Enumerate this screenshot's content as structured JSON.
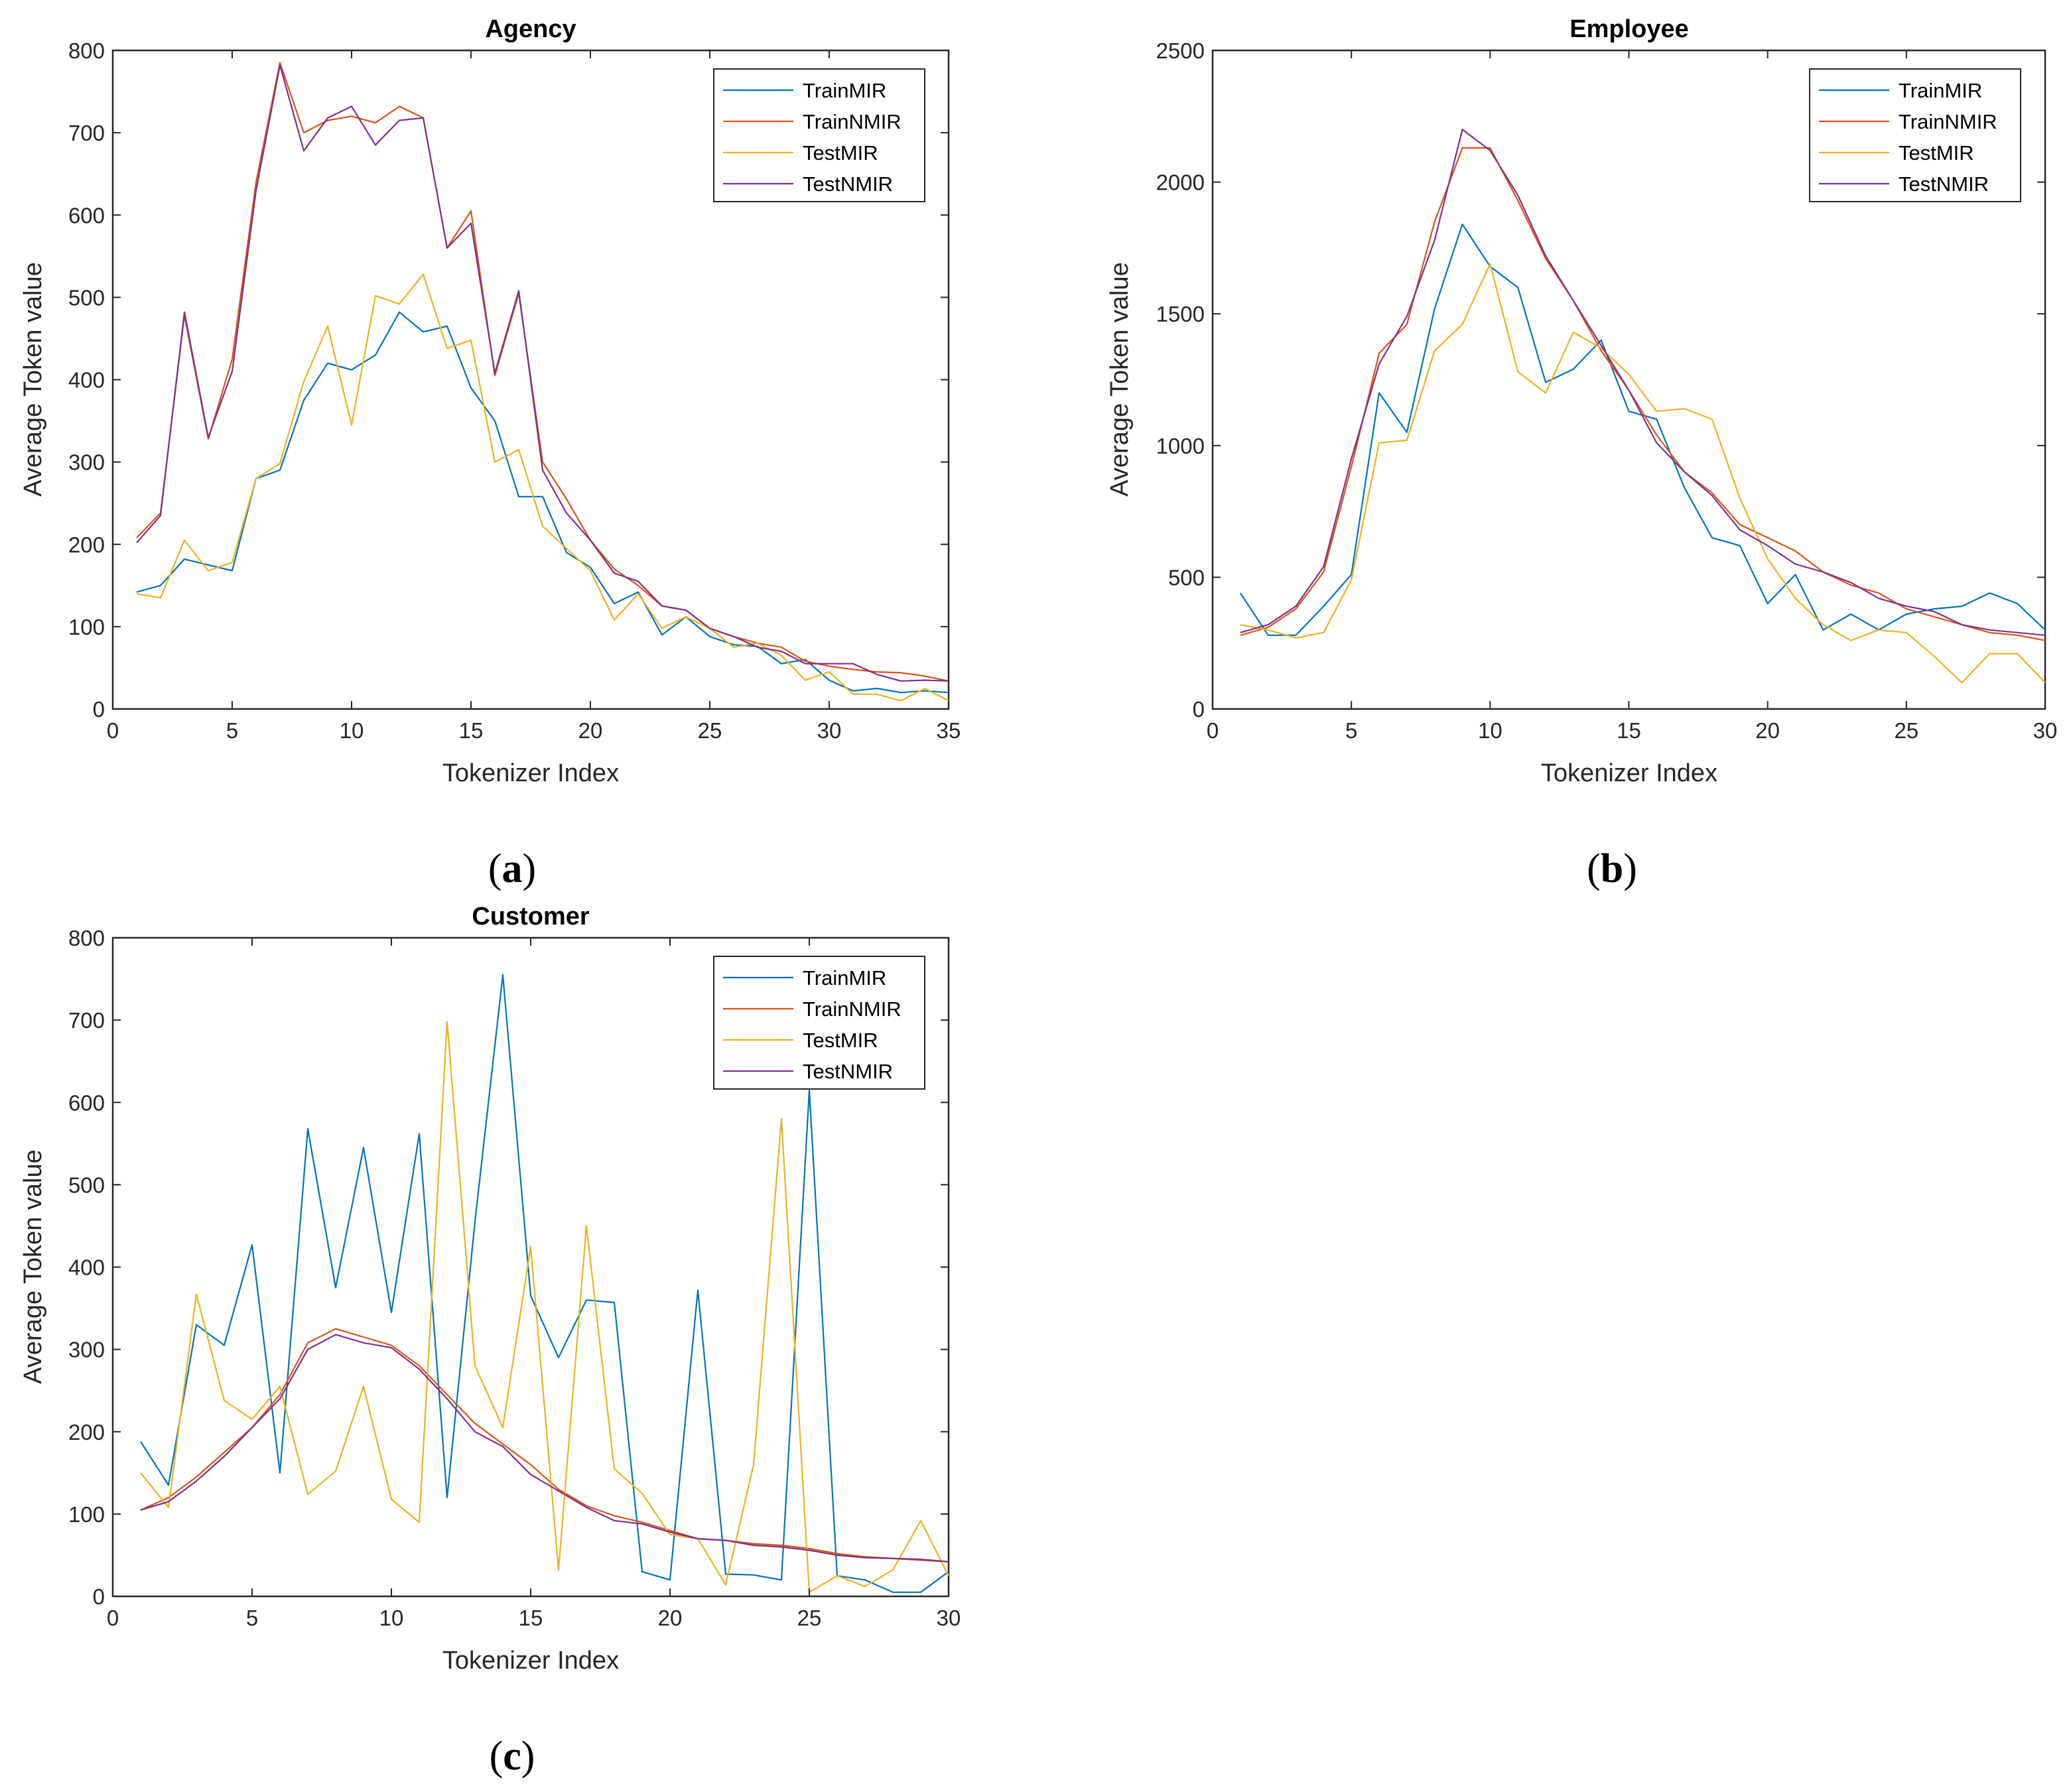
{
  "colors": {
    "TrainMIR": "#0072BD",
    "TrainNMIR": "#D95319",
    "TestMIR": "#EDB120",
    "TestNMIR": "#7E2F8E",
    "axis": "#262626"
  },
  "chart_data": [
    {
      "type": "line",
      "title": "Agency",
      "xlabel": "Tokenizer Index",
      "ylabel": "Average Token value",
      "xlim": [
        0,
        35
      ],
      "ylim": [
        0,
        800
      ],
      "xticks": [
        0,
        5,
        10,
        15,
        20,
        25,
        30,
        35
      ],
      "yticks": [
        0,
        100,
        200,
        300,
        400,
        500,
        600,
        700,
        800
      ],
      "legend": "top-right",
      "caption": {
        "open": "(",
        "letter": "a",
        "close": ")"
      },
      "series": [
        {
          "name": "TrainMIR",
          "values": [
            142,
            150,
            182,
            175,
            168,
            280,
            290,
            375,
            420,
            412,
            430,
            482,
            458,
            465,
            390,
            350,
            258,
            258,
            190,
            172,
            128,
            142,
            90,
            112,
            88,
            78,
            76,
            55,
            60,
            35,
            22,
            25,
            20,
            22,
            20
          ]
        },
        {
          "name": "TrainNMIR",
          "values": [
            208,
            238,
            478,
            328,
            425,
            640,
            785,
            700,
            715,
            720,
            712,
            732,
            718,
            560,
            605,
            405,
            505,
            300,
            255,
            205,
            170,
            150,
            125,
            120,
            98,
            88,
            80,
            75,
            58,
            52,
            48,
            45,
            44,
            40,
            34
          ]
        },
        {
          "name": "TestMIR",
          "values": [
            140,
            135,
            205,
            168,
            178,
            280,
            298,
            398,
            465,
            345,
            502,
            492,
            528,
            438,
            448,
            300,
            315,
            222,
            195,
            168,
            108,
            140,
            98,
            112,
            98,
            75,
            80,
            65,
            35,
            45,
            18,
            18,
            10,
            25,
            10
          ]
        },
        {
          "name": "TestNMIR",
          "values": [
            202,
            235,
            482,
            330,
            410,
            630,
            782,
            678,
            718,
            732,
            685,
            715,
            718,
            560,
            590,
            408,
            508,
            290,
            238,
            205,
            165,
            155,
            125,
            120,
            98,
            88,
            75,
            70,
            55,
            55,
            55,
            42,
            34,
            35,
            34
          ]
        }
      ]
    },
    {
      "type": "line",
      "title": "Employee",
      "xlabel": "Tokenizer Index",
      "ylabel": "Average Token value",
      "xlim": [
        0,
        30
      ],
      "ylim": [
        0,
        2500
      ],
      "xticks": [
        0,
        5,
        10,
        15,
        20,
        25,
        30
      ],
      "yticks": [
        0,
        500,
        1000,
        1500,
        2000,
        2500
      ],
      "legend": "top-right",
      "caption": {
        "open": "(",
        "letter": "b",
        "close": ")"
      },
      "series": [
        {
          "name": "TrainMIR",
          "values": [
            440,
            280,
            280,
            390,
            510,
            1200,
            1050,
            1520,
            1840,
            1680,
            1600,
            1240,
            1290,
            1400,
            1130,
            1100,
            840,
            650,
            620,
            400,
            510,
            300,
            360,
            300,
            360,
            380,
            390,
            440,
            400,
            300
          ]
        },
        {
          "name": "TrainNMIR",
          "values": [
            280,
            310,
            380,
            520,
            920,
            1350,
            1460,
            1850,
            2130,
            2130,
            1930,
            1710,
            1550,
            1360,
            1210,
            1040,
            900,
            820,
            700,
            650,
            600,
            520,
            470,
            440,
            380,
            350,
            320,
            290,
            280,
            260
          ]
        },
        {
          "name": "TestMIR",
          "values": [
            320,
            300,
            270,
            290,
            490,
            1010,
            1020,
            1360,
            1460,
            1690,
            1280,
            1200,
            1430,
            1370,
            1270,
            1130,
            1140,
            1100,
            800,
            570,
            420,
            320,
            260,
            300,
            290,
            200,
            100,
            210,
            210,
            100
          ]
        },
        {
          "name": "TestNMIR",
          "values": [
            290,
            320,
            390,
            540,
            950,
            1310,
            1490,
            1780,
            2200,
            2120,
            1950,
            1720,
            1550,
            1380,
            1210,
            1010,
            900,
            810,
            680,
            620,
            550,
            520,
            480,
            420,
            390,
            370,
            320,
            300,
            290,
            280
          ]
        }
      ]
    },
    {
      "type": "line",
      "title": "Customer",
      "xlabel": "Tokenizer Index",
      "ylabel": "Average Token value",
      "xlim": [
        0,
        30
      ],
      "ylim": [
        0,
        800
      ],
      "xticks": [
        0,
        5,
        10,
        15,
        20,
        25,
        30
      ],
      "yticks": [
        0,
        100,
        200,
        300,
        400,
        500,
        600,
        700,
        800
      ],
      "legend": "top-right",
      "caption": {
        "open": "(",
        "letter": "c",
        "close": ")"
      },
      "series": [
        {
          "name": "TrainMIR",
          "values": [
            188,
            135,
            330,
            305,
            427,
            150,
            568,
            375,
            545,
            345,
            562,
            120,
            455,
            755,
            365,
            290,
            360,
            357,
            30,
            20,
            372,
            27,
            26,
            20,
            615,
            25,
            20,
            5,
            5,
            30
          ]
        },
        {
          "name": "TrainNMIR",
          "values": [
            105,
            120,
            145,
            175,
            205,
            245,
            308,
            325,
            315,
            305,
            280,
            245,
            210,
            185,
            160,
            130,
            110,
            98,
            90,
            80,
            70,
            68,
            64,
            62,
            58,
            52,
            48,
            46,
            44,
            42
          ]
        },
        {
          "name": "TestMIR",
          "values": [
            150,
            108,
            367,
            238,
            215,
            255,
            124,
            152,
            255,
            118,
            90,
            698,
            280,
            205,
            425,
            32,
            450,
            155,
            125,
            75,
            70,
            14,
            160,
            580,
            5,
            25,
            12,
            32,
            92,
            25
          ]
        },
        {
          "name": "TestNMIR",
          "values": [
            105,
            115,
            140,
            170,
            205,
            240,
            300,
            318,
            308,
            302,
            276,
            240,
            200,
            182,
            148,
            128,
            108,
            92,
            88,
            78,
            70,
            68,
            62,
            60,
            56,
            50,
            47,
            46,
            45,
            42
          ]
        }
      ]
    }
  ]
}
